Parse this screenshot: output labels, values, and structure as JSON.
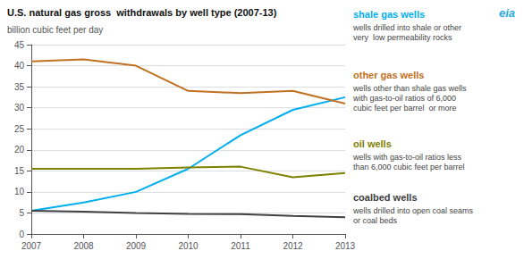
{
  "chart_data": {
    "type": "line",
    "title": "U.S. natural gas gross  withdrawals by well type (2007-13)",
    "ylabel": "billion cubic feet per day",
    "x": [
      2007,
      2008,
      2009,
      2010,
      2011,
      2012,
      2013
    ],
    "xlim": [
      2007,
      2013
    ],
    "xticks": [
      2007,
      2008,
      2009,
      2010,
      2011,
      2012,
      2013
    ],
    "ylim": [
      0,
      45
    ],
    "yticks": [
      0,
      5,
      10,
      15,
      20,
      25,
      30,
      35,
      40,
      45
    ],
    "grid": true,
    "series": [
      {
        "name": "shale gas wells",
        "color": "#00AEEF",
        "values": [
          5.5,
          7.5,
          10.0,
          15.5,
          23.5,
          29.5,
          32.5
        ],
        "annotation": "wells drilled into shale or other\nvery  low permeability rocks"
      },
      {
        "name": "other gas wells",
        "color": "#C07020",
        "values": [
          41.0,
          41.5,
          40.0,
          34.0,
          33.5,
          34.0,
          31.0
        ],
        "annotation": "wells other than shale gas wells\nwith gas-to-oil ratios of 6,000\ncubic feet per barrel  or more"
      },
      {
        "name": "oil wells",
        "color": "#808000",
        "values": [
          15.5,
          15.5,
          15.5,
          15.8,
          16.0,
          13.5,
          14.5
        ],
        "annotation": "wells with gas-to-oil ratios less\nthan 6,000 cubic feet per barrel"
      },
      {
        "name": "coalbed wells",
        "color": "#404040",
        "values": [
          5.5,
          5.3,
          5.0,
          4.8,
          4.7,
          4.3,
          4.0
        ],
        "annotation": "wells drilled into open coal seams\nor coal beds"
      }
    ],
    "annotations": [
      "eia"
    ]
  }
}
